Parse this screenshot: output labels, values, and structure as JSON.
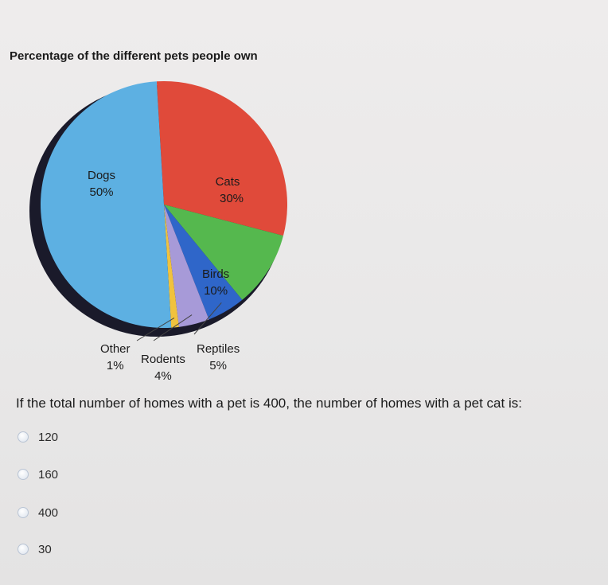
{
  "chart_data": {
    "type": "pie",
    "title": "Percentage of the different pets people own",
    "slices": [
      {
        "name": "Cats",
        "value": 30,
        "label": "30%",
        "color": "#e04a3a"
      },
      {
        "name": "Birds",
        "value": 10,
        "label": "10%",
        "color": "#55b84e"
      },
      {
        "name": "Reptiles",
        "value": 5,
        "label": "5%",
        "color": "#2f66c9"
      },
      {
        "name": "Rodents",
        "value": 4,
        "label": "4%",
        "color": "#a79ad8"
      },
      {
        "name": "Other",
        "value": 1,
        "label": "1%",
        "color": "#f0c23e"
      },
      {
        "name": "Dogs",
        "value": 50,
        "label": "50%",
        "color": "#5db0e2"
      }
    ]
  },
  "question": {
    "text": "If the total number of homes with a pet is 400, the number of homes with a pet cat is:",
    "options": [
      "120",
      "160",
      "400",
      "30"
    ]
  }
}
